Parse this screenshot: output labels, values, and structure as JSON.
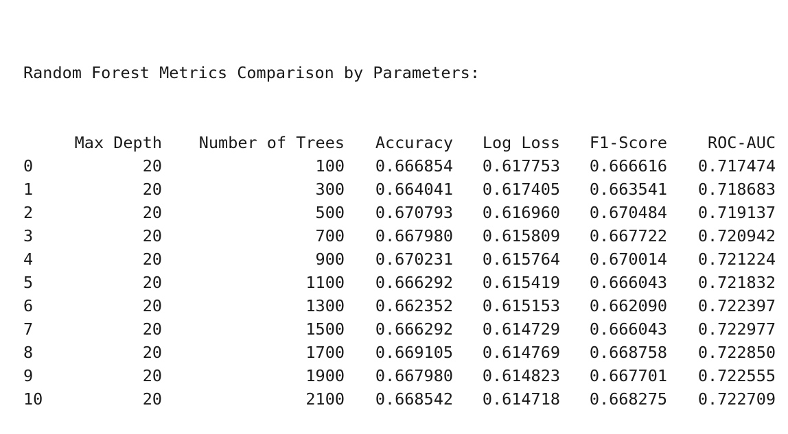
{
  "title": "Random Forest Metrics Comparison by Parameters:",
  "columns": [
    "Max Depth",
    "Number of Trees",
    "Accuracy",
    "Log Loss",
    "F1-Score",
    "ROC-AUC"
  ],
  "rows": [
    {
      "index": "0",
      "cells": [
        "20",
        "100",
        "0.666854",
        "0.617753",
        "0.666616",
        "0.717474"
      ]
    },
    {
      "index": "1",
      "cells": [
        "20",
        "300",
        "0.664041",
        "0.617405",
        "0.663541",
        "0.718683"
      ]
    },
    {
      "index": "2",
      "cells": [
        "20",
        "500",
        "0.670793",
        "0.616960",
        "0.670484",
        "0.719137"
      ]
    },
    {
      "index": "3",
      "cells": [
        "20",
        "700",
        "0.667980",
        "0.615809",
        "0.667722",
        "0.720942"
      ]
    },
    {
      "index": "4",
      "cells": [
        "20",
        "900",
        "0.670231",
        "0.615764",
        "0.670014",
        "0.721224"
      ]
    },
    {
      "index": "5",
      "cells": [
        "20",
        "1100",
        "0.666292",
        "0.615419",
        "0.666043",
        "0.721832"
      ]
    },
    {
      "index": "6",
      "cells": [
        "20",
        "1300",
        "0.662352",
        "0.615153",
        "0.662090",
        "0.722397"
      ]
    },
    {
      "index": "7",
      "cells": [
        "20",
        "1500",
        "0.666292",
        "0.614729",
        "0.666043",
        "0.722977"
      ]
    },
    {
      "index": "8",
      "cells": [
        "20",
        "1700",
        "0.669105",
        "0.614769",
        "0.668758",
        "0.722850"
      ]
    },
    {
      "index": "9",
      "cells": [
        "20",
        "1900",
        "0.667980",
        "0.614823",
        "0.667701",
        "0.722555"
      ]
    },
    {
      "index": "10",
      "cells": [
        "20",
        "2100",
        "0.668542",
        "0.614718",
        "0.668275",
        "0.722709"
      ]
    }
  ]
}
